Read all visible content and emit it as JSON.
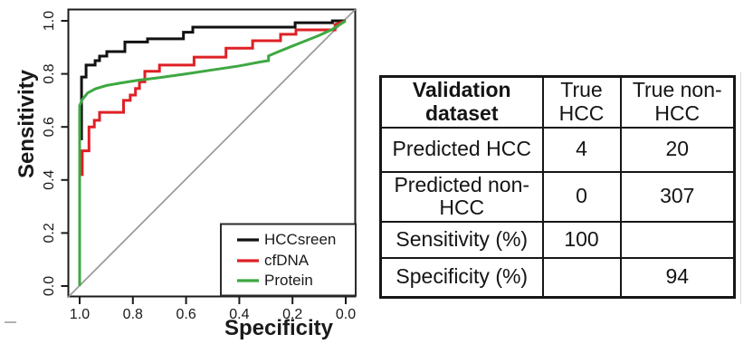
{
  "chart_data": [
    {
      "type": "line",
      "title": "",
      "xlabel": "Specificity",
      "ylabel": "Sensitivity",
      "x_reversed": true,
      "xlim": [
        1.0,
        0.0
      ],
      "ylim": [
        0.0,
        1.0
      ],
      "x_ticks": [
        1.0,
        0.8,
        0.6,
        0.4,
        0.2,
        0.0
      ],
      "y_ticks": [
        0.0,
        0.2,
        0.4,
        0.6,
        0.8,
        1.0
      ],
      "grid": false,
      "legend_position": "bottom-right",
      "reference_line": {
        "from": [
          1.0,
          0.0
        ],
        "to": [
          0.0,
          1.0
        ],
        "color": "#9c9c9c"
      },
      "series": [
        {
          "name": "HCCsreen",
          "color": "#111111",
          "points": [
            [
              1,
              0
            ],
            [
              1,
              0.555
            ],
            [
              0.993,
              0.555
            ],
            [
              0.993,
              0.788
            ],
            [
              0.976,
              0.788
            ],
            [
              0.976,
              0.833
            ],
            [
              0.942,
              0.833
            ],
            [
              0.942,
              0.85
            ],
            [
              0.925,
              0.85
            ],
            [
              0.925,
              0.867
            ],
            [
              0.898,
              0.867
            ],
            [
              0.898,
              0.884
            ],
            [
              0.83,
              0.884
            ],
            [
              0.83,
              0.92
            ],
            [
              0.745,
              0.92
            ],
            [
              0.745,
              0.932
            ],
            [
              0.61,
              0.932
            ],
            [
              0.61,
              0.957
            ],
            [
              0.575,
              0.957
            ],
            [
              0.575,
              0.976
            ],
            [
              0.19,
              0.976
            ],
            [
              0.19,
              0.993
            ],
            [
              0.05,
              0.993
            ],
            [
              0.05,
              1
            ],
            [
              0,
              1
            ]
          ]
        },
        {
          "name": "cfDNA",
          "color": "#dd2026",
          "points": [
            [
              1,
              0
            ],
            [
              1,
              0.42
            ],
            [
              0.99,
              0.42
            ],
            [
              0.99,
              0.51
            ],
            [
              0.965,
              0.51
            ],
            [
              0.965,
              0.6
            ],
            [
              0.945,
              0.6
            ],
            [
              0.945,
              0.625
            ],
            [
              0.925,
              0.625
            ],
            [
              0.925,
              0.655
            ],
            [
              0.835,
              0.655
            ],
            [
              0.835,
              0.7
            ],
            [
              0.81,
              0.7
            ],
            [
              0.81,
              0.72
            ],
            [
              0.79,
              0.72
            ],
            [
              0.79,
              0.745
            ],
            [
              0.775,
              0.745
            ],
            [
              0.775,
              0.77
            ],
            [
              0.755,
              0.77
            ],
            [
              0.755,
              0.81
            ],
            [
              0.7,
              0.81
            ],
            [
              0.7,
              0.833
            ],
            [
              0.57,
              0.833
            ],
            [
              0.57,
              0.863
            ],
            [
              0.45,
              0.863
            ],
            [
              0.45,
              0.897
            ],
            [
              0.35,
              0.897
            ],
            [
              0.35,
              0.925
            ],
            [
              0.245,
              0.925
            ],
            [
              0.245,
              0.949
            ],
            [
              0.187,
              0.949
            ],
            [
              0.187,
              0.966
            ],
            [
              0.04,
              0.966
            ],
            [
              0.04,
              0.986
            ],
            [
              0,
              1
            ]
          ]
        },
        {
          "name": "Protein",
          "color": "#3ea842",
          "points": [
            [
              1,
              0
            ],
            [
              1,
              0.68
            ],
            [
              0.99,
              0.703
            ],
            [
              0.97,
              0.728
            ],
            [
              0.94,
              0.744
            ],
            [
              0.9,
              0.756
            ],
            [
              0.85,
              0.765
            ],
            [
              0.78,
              0.776
            ],
            [
              0.7,
              0.786
            ],
            [
              0.6,
              0.8
            ],
            [
              0.5,
              0.815
            ],
            [
              0.4,
              0.83
            ],
            [
              0.32,
              0.845
            ],
            [
              0.29,
              0.85
            ],
            [
              0.29,
              0.868
            ],
            [
              0.25,
              0.885
            ],
            [
              0.2,
              0.905
            ],
            [
              0.15,
              0.925
            ],
            [
              0.1,
              0.945
            ],
            [
              0.05,
              0.968
            ],
            [
              0,
              1
            ]
          ]
        }
      ]
    },
    {
      "type": "table",
      "header": [
        "Validation dataset",
        "True HCC",
        "True non-HCC"
      ],
      "rows": [
        [
          "Predicted HCC",
          "4",
          "20"
        ],
        [
          "Predicted non-HCC",
          "0",
          "307"
        ],
        [
          "Sensitivity (%)",
          "100",
          ""
        ],
        [
          "Specificity (%)",
          "",
          "94"
        ]
      ]
    }
  ]
}
